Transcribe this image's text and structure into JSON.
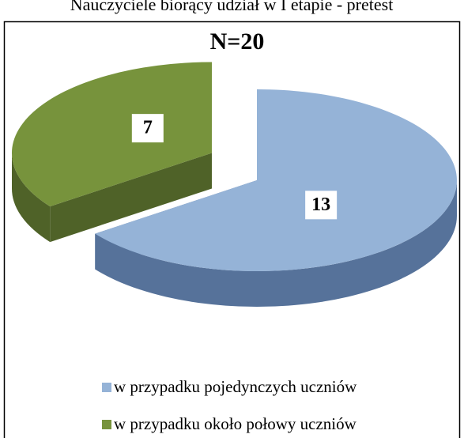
{
  "heading": "Nauczyciele biorący udział w I etapie - pretest",
  "chart_data": {
    "type": "pie3d",
    "title": "N=20",
    "categories": [
      "w przypadku pojedynczych uczniów",
      "w przypadku około połowy uczniów"
    ],
    "values": [
      13,
      7
    ],
    "colors": [
      "#95b3d7",
      "#77933c"
    ],
    "side_colors": [
      "#56729a",
      "#4f6228"
    ]
  }
}
